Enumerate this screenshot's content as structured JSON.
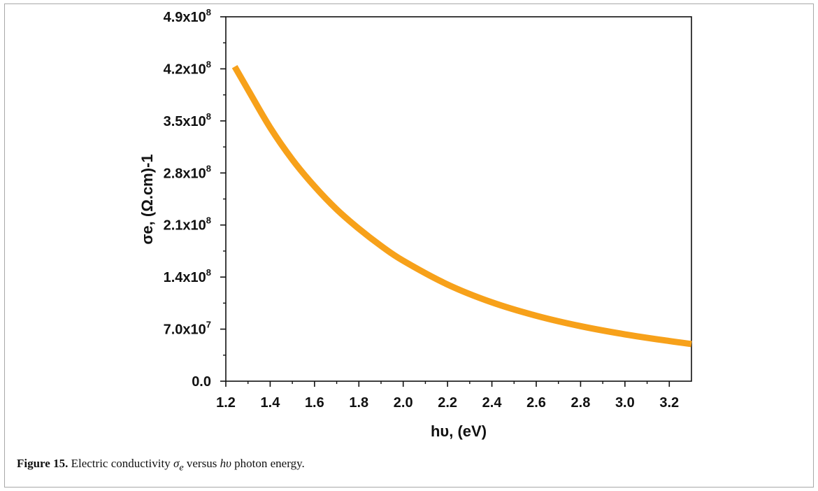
{
  "chart_data": {
    "type": "line",
    "title": "",
    "xlabel": "hυ, (eV)",
    "ylabel": "σe, (Ω.cm)-1",
    "xlim": [
      1.2,
      3.3
    ],
    "ylim": [
      0,
      490000000
    ],
    "x_ticks": [
      "1.2",
      "1.4",
      "1.6",
      "1.8",
      "2.0",
      "2.2",
      "2.4",
      "2.6",
      "2.8",
      "3.0",
      "3.2"
    ],
    "y_ticks": [
      {
        "value": 0,
        "mantissa": "0.0",
        "exp": ""
      },
      {
        "value": 70000000,
        "mantissa": "7.0x10",
        "exp": "7"
      },
      {
        "value": 140000000,
        "mantissa": "1.4x10",
        "exp": "8"
      },
      {
        "value": 210000000,
        "mantissa": "2.1x10",
        "exp": "8"
      },
      {
        "value": 280000000,
        "mantissa": "2.8x10",
        "exp": "8"
      },
      {
        "value": 350000000,
        "mantissa": "3.5x10",
        "exp": "8"
      },
      {
        "value": 420000000,
        "mantissa": "4.2x10",
        "exp": "8"
      },
      {
        "value": 490000000,
        "mantissa": "4.9x10",
        "exp": "8"
      }
    ],
    "grid": false,
    "series": [
      {
        "color": "#F7A11A",
        "x": [
          1.24,
          1.3,
          1.4,
          1.5,
          1.6,
          1.7,
          1.8,
          1.9,
          2.0,
          2.2,
          2.4,
          2.6,
          2.8,
          3.0,
          3.2,
          3.3
        ],
        "y": [
          423000000,
          392000000,
          341000000,
          298000000,
          262000000,
          231000000,
          205000000,
          182000000,
          162000000,
          130000000,
          106000000,
          88000000,
          74000000,
          63000000,
          54000000,
          50000000
        ]
      }
    ]
  },
  "caption": {
    "label": "Figure 15.",
    "pre": " Electric conductivity ",
    "sigma": "σ",
    "sigma_sub": "e",
    "mid": " versus ",
    "hv": "hυ",
    "post": " photon energy."
  }
}
